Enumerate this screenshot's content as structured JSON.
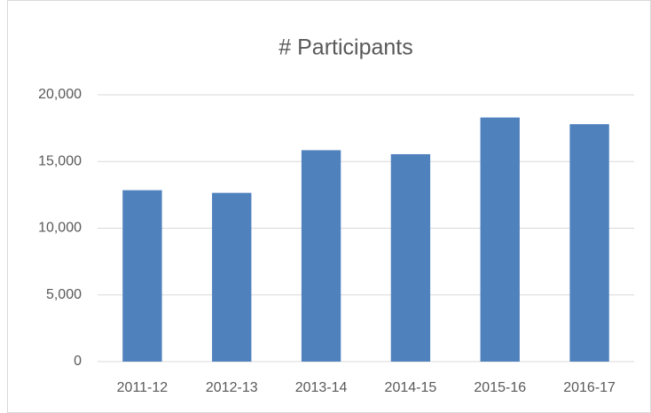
{
  "chart_data": {
    "type": "bar",
    "title": "# Participants",
    "categories": [
      "2011-12",
      "2012-13",
      "2013-14",
      "2014-15",
      "2015-16",
      "2016-17"
    ],
    "values": [
      12850,
      12650,
      15850,
      15550,
      18300,
      17800
    ],
    "color": "#4f81bd",
    "ylim": [
      0,
      20000
    ],
    "yticks": [
      0,
      {
        "value": 5000,
        "label": "5,000"
      },
      {
        "value": 10000,
        "label": "10,000"
      },
      {
        "value": 15000,
        "label": "15,000"
      },
      {
        "value": 20000,
        "label": "20,000"
      }
    ],
    "grid": true
  }
}
